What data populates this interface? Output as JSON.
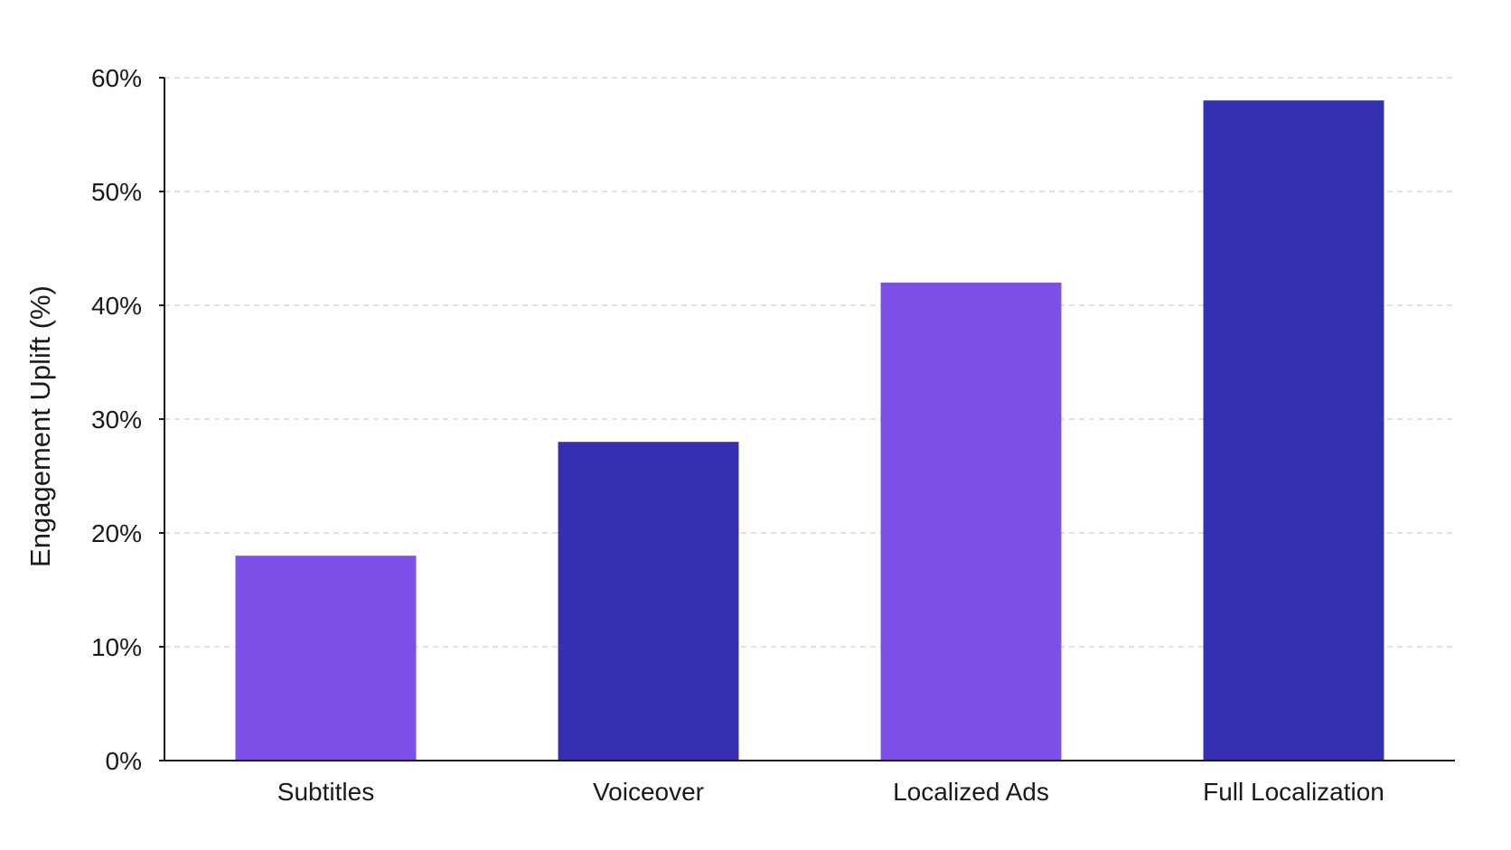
{
  "chart_data": {
    "type": "bar",
    "title": "",
    "xlabel": "",
    "ylabel": "Engagement Uplift (%)",
    "categories": [
      "Subtitles",
      "Voiceover",
      "Localized Ads",
      "Full Localization"
    ],
    "values": [
      18,
      28,
      42,
      58
    ],
    "bar_colors": [
      "#7B4FE8",
      "#3430B0",
      "#7B4FE8",
      "#3430B0"
    ],
    "ylim": [
      0,
      60
    ],
    "yticks": [
      0,
      10,
      20,
      30,
      40,
      50,
      60
    ],
    "ytick_labels": [
      "0%",
      "10%",
      "20%",
      "30%",
      "40%",
      "50%",
      "60%"
    ],
    "grid": true,
    "legend": false
  }
}
